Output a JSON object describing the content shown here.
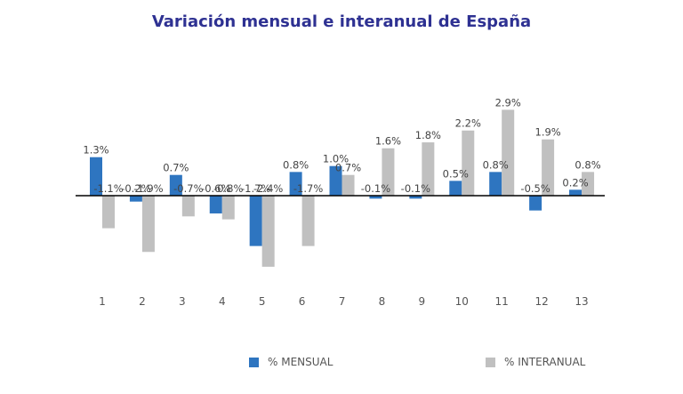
{
  "chart_data": {
    "type": "bar",
    "title": "Variación mensual e interanual de España",
    "categories": [
      "1",
      "2",
      "3",
      "4",
      "5",
      "6",
      "7",
      "8",
      "9",
      "10",
      "11",
      "12",
      "13"
    ],
    "series": [
      {
        "name": "% MENSUAL",
        "color": "#2e75c0",
        "values": [
          1.3,
          -0.2,
          0.7,
          -0.6,
          -1.7,
          0.8,
          1.0,
          -0.1,
          -0.1,
          0.5,
          0.8,
          -0.5,
          0.2
        ],
        "labels": [
          "1.3%",
          "-0.2%",
          "0.7%",
          "-0.6%",
          "-1.7%",
          "0.8%",
          "1.0%",
          "-0.1%",
          "-0.1%",
          "0.5%",
          "0.8%",
          "-0.5%",
          "0.2%"
        ]
      },
      {
        "name": "% INTERANUAL",
        "color": "#c0c0c0",
        "values": [
          -1.1,
          -1.9,
          -0.7,
          -0.8,
          -2.4,
          -1.7,
          0.7,
          1.6,
          1.8,
          2.2,
          2.9,
          1.9,
          0.8
        ],
        "labels": [
          "-1.1%",
          "-1.9%",
          "-0.7%",
          "-0.8%",
          "-2.4%",
          "-1.7%",
          "0.7%",
          "1.6%",
          "1.8%",
          "2.2%",
          "2.9%",
          "1.9%",
          "0.8%"
        ]
      }
    ],
    "xlabel": "",
    "ylabel": "",
    "ylim": [
      -2.4,
      2.9
    ],
    "legend_position": "bottom"
  }
}
